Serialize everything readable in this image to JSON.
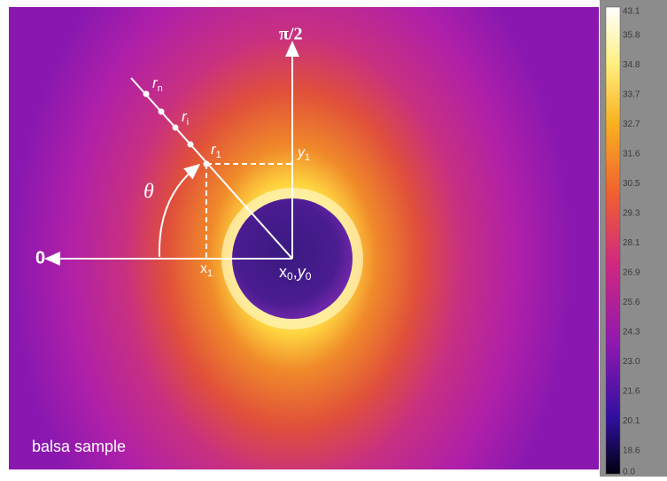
{
  "figure": {
    "axis_labels": {
      "zero": "0",
      "half_pi": "π/2",
      "theta": "θ"
    },
    "radial_points": {
      "r_n": {
        "main": "r",
        "sub": "n"
      },
      "r_i": {
        "main": "r",
        "sub": "i"
      },
      "r_1": {
        "main": "r",
        "sub": "1"
      }
    },
    "coordinates": {
      "x_1": {
        "main": "x",
        "sub": "1"
      },
      "y_1": {
        "main": "y",
        "sub": "1"
      },
      "center": {
        "x": "x",
        "x_sub": "0",
        "sep": ",",
        "y": "y",
        "y_sub": "0"
      }
    },
    "caption": "balsa sample",
    "colorbar": {
      "labels": [
        "43.1",
        "35.8",
        "34.8",
        "33.7",
        "32.7",
        "31.6",
        "30.5",
        "29.3",
        "28.1",
        "26.9",
        "25.6",
        "24.3",
        "23.0",
        "21.6",
        "20.1",
        "18.6",
        "0.0"
      ]
    }
  }
}
